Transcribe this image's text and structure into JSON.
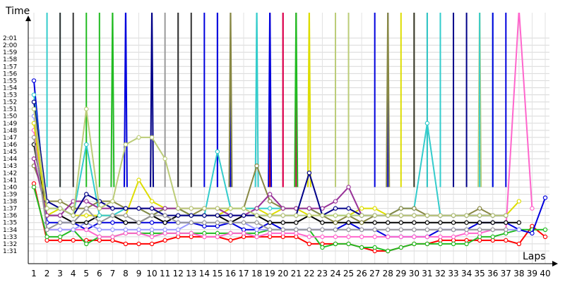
{
  "chart_data": {
    "type": "line",
    "ylabel": "Time",
    "xlabel": "Laps",
    "x": [
      1,
      2,
      3,
      4,
      5,
      6,
      7,
      8,
      9,
      10,
      11,
      12,
      13,
      14,
      15,
      16,
      17,
      18,
      19,
      20,
      21,
      22,
      23,
      24,
      25,
      26,
      27,
      28,
      29,
      30,
      31,
      32,
      33,
      34,
      35,
      36,
      37,
      38,
      39,
      40
    ],
    "y_ticks": [
      "1:31",
      "1:32",
      "1:33",
      "1:34",
      "1:35",
      "1:36",
      "1:37",
      "1:38",
      "1:39",
      "1:40",
      "1:41",
      "1:42",
      "1:43",
      "1:44",
      "1:45",
      "1:46",
      "1:47",
      "1:48",
      "1:49",
      "1:50",
      "1:51",
      "1:52",
      "1:53",
      "1:54",
      "1:55",
      "1:56",
      "1:57",
      "1:58",
      "1:59",
      "2:00",
      "2:01"
    ],
    "ylim": [
      90.5,
      125
    ],
    "xlim": [
      1,
      40
    ],
    "grid": true,
    "series": [
      {
        "color": "#ff0000",
        "values": [
          100.5,
          92.5,
          92.5,
          92.5,
          92.5,
          92.5,
          92.5,
          92,
          92,
          92,
          92.5,
          93,
          93,
          93,
          93,
          92.5,
          93,
          93,
          93,
          93,
          93,
          92,
          92,
          92,
          92,
          91.5,
          91,
          91,
          91.5,
          92,
          92,
          92.5,
          92.5,
          92.5,
          92.5,
          92.5,
          92.5,
          92,
          94.5,
          93
        ]
      },
      {
        "color": "#22bb22",
        "values": [
          100,
          93,
          93,
          94,
          92,
          93,
          93,
          93.5,
          93.5,
          93.5,
          93.5,
          93.5,
          93.5,
          93.5,
          93.5,
          93.5,
          93.5,
          93.5,
          94,
          94,
          94,
          94,
          91.5,
          92,
          92,
          91.5,
          91.5,
          91,
          91.5,
          92,
          92,
          92,
          92,
          92,
          93,
          93,
          93.5,
          94,
          94,
          94
        ]
      },
      {
        "color": "#0000dd",
        "values": [
          115,
          95,
          95,
          95,
          94,
          95,
          95,
          95,
          95,
          95,
          95,
          95,
          95,
          94.5,
          94.5,
          95,
          94,
          94,
          95,
          94,
          94,
          94,
          94,
          94,
          95,
          94,
          94,
          93,
          93,
          93,
          93,
          94,
          94,
          94,
          95,
          95,
          95,
          94,
          93.5,
          98.5
        ]
      },
      {
        "color": "#ff66cc",
        "values": [
          108,
          94,
          94,
          94,
          94,
          93,
          93,
          93.5,
          93.5,
          93,
          93.5,
          93.5,
          93.5,
          93,
          93,
          93.5,
          93.5,
          93,
          93.5,
          93.5,
          93.5,
          93,
          93,
          93,
          93,
          93,
          93,
          93,
          93,
          93,
          93,
          93,
          93,
          93.5,
          93.5,
          94,
          94,
          125,
          97,
          null
        ]
      },
      {
        "color": "#9999ff",
        "values": [
          110,
          94,
          94,
          94,
          95,
          94,
          94,
          94,
          94,
          94,
          94,
          94,
          95,
          95,
          95,
          95,
          95,
          94,
          94,
          94,
          94,
          94,
          94,
          94,
          94,
          94,
          94,
          94,
          94,
          94,
          94,
          94,
          94,
          94,
          94,
          94,
          94,
          94,
          null,
          null
        ]
      },
      {
        "color": "#000000",
        "values": [
          106,
          96,
          96,
          95,
          95,
          96,
          96,
          95,
          95,
          96,
          95,
          96,
          96,
          96,
          96,
          95,
          96,
          96,
          95,
          95,
          95,
          96,
          95,
          95,
          95,
          95,
          95,
          95,
          95,
          95,
          95,
          95,
          95,
          95,
          95,
          95,
          95,
          95,
          null,
          null
        ]
      },
      {
        "color": "#dddd00",
        "values": [
          109,
          96,
          97,
          96,
          96,
          96,
          96,
          96,
          101,
          98,
          97,
          97,
          96,
          96,
          96,
          97,
          97,
          97,
          96,
          97,
          97,
          96,
          96,
          96,
          96,
          97,
          97,
          96,
          96,
          96,
          96,
          96,
          96,
          96,
          96,
          96,
          96,
          98,
          null,
          null
        ]
      },
      {
        "color": "#33cccc",
        "values": [
          113,
          97,
          97,
          96,
          106,
          96,
          96,
          97,
          97,
          96,
          97,
          97,
          96,
          96,
          105,
          97,
          97,
          97,
          97,
          97,
          97,
          97,
          96,
          96,
          96,
          96,
          96,
          96,
          97,
          97,
          109,
          96,
          96,
          96,
          96,
          96,
          96,
          null,
          null,
          null
        ]
      },
      {
        "color": "#888844",
        "values": [
          103,
          98,
          98,
          97,
          97,
          98,
          98,
          97,
          97,
          96,
          97,
          97,
          96,
          97,
          97,
          97,
          97,
          103,
          98,
          97,
          97,
          97,
          96,
          95,
          96,
          95,
          96,
          96,
          97,
          97,
          96,
          96,
          96,
          96,
          97,
          96,
          96,
          null,
          null,
          null
        ]
      },
      {
        "color": "#993399",
        "values": [
          104,
          96,
          96,
          98,
          98,
          97,
          97,
          97,
          97,
          97,
          97,
          97,
          97,
          97,
          97,
          96,
          96,
          97,
          99,
          97,
          97,
          97,
          97,
          98,
          100,
          96,
          96,
          96,
          96,
          96,
          96,
          96,
          96,
          96,
          96,
          96,
          96,
          null,
          null,
          null
        ]
      },
      {
        "color": "#000088",
        "values": [
          112,
          98,
          97,
          96,
          99,
          98,
          97,
          97,
          97,
          97,
          96,
          96,
          96,
          96,
          96,
          96,
          96,
          96,
          96,
          96,
          96,
          102,
          96,
          97,
          97,
          96,
          96,
          96,
          96,
          96,
          96,
          96,
          96,
          96,
          96,
          96,
          96,
          null,
          null,
          null
        ]
      },
      {
        "color": "#bbcc77",
        "values": [
          111,
          97,
          97,
          96,
          111,
          97,
          98,
          106,
          107,
          107,
          104,
          97,
          97,
          97,
          97,
          97,
          97,
          96,
          96,
          96,
          96,
          96,
          96,
          96,
          96,
          96,
          96,
          96,
          96,
          96,
          96,
          96,
          96,
          96,
          96,
          96,
          96,
          null,
          null,
          null
        ]
      },
      {
        "color": "#999999",
        "values": [
          107,
          94,
          95,
          95,
          97,
          95,
          96,
          96,
          95,
          96,
          96,
          95,
          95,
          95,
          95,
          95,
          95,
          95,
          94,
          94,
          94,
          94,
          94,
          94,
          94,
          94,
          94,
          94,
          94,
          94,
          94,
          94,
          94,
          94,
          94,
          94,
          94,
          null,
          null,
          null
        ]
      }
    ],
    "spikes": [
      {
        "color": "#33cccc",
        "from": 2,
        "peak": 126,
        "to": 3
      },
      {
        "color": "#333333",
        "from": 3,
        "peak": 126,
        "to": 4
      },
      {
        "color": "#22bb22",
        "from": 5,
        "peak": 126,
        "to": 6
      },
      {
        "color": "#22bb22",
        "from": 7,
        "peak": 126,
        "to": 7
      },
      {
        "color": "#0000dd",
        "from": 8,
        "peak": 126,
        "to": 8
      },
      {
        "color": "#000088",
        "from": 10,
        "peak": 126,
        "to": 10
      },
      {
        "color": "#999999",
        "from": 11,
        "peak": 126,
        "to": 12
      },
      {
        "color": "#333333",
        "from": 12,
        "peak": 126,
        "to": 13
      },
      {
        "color": "#0000dd",
        "from": 14,
        "peak": 126,
        "to": 15
      },
      {
        "color": "#0000dd",
        "from": 15,
        "peak": 126,
        "to": 16
      },
      {
        "color": "#888844",
        "from": 16,
        "peak": 126,
        "to": 16
      },
      {
        "color": "#33cccc",
        "from": 18,
        "peak": 126,
        "to": 18
      },
      {
        "color": "#cc0000",
        "from": 19,
        "peak": 126,
        "to": 20
      },
      {
        "color": "#0000dd",
        "from": 19,
        "peak": 126,
        "to": 19
      },
      {
        "color": "#dd0055",
        "from": 20,
        "peak": 126,
        "to": 21
      },
      {
        "color": "#22bb22",
        "from": 21,
        "peak": 126,
        "to": 21
      },
      {
        "color": "#dddd00",
        "from": 22,
        "peak": 126,
        "to": 22
      },
      {
        "color": "#bbcc77",
        "from": 24,
        "peak": 126,
        "to": 25
      },
      {
        "color": "#0000dd",
        "from": 27,
        "peak": 126,
        "to": 28
      },
      {
        "color": "#888844",
        "from": 28,
        "peak": 126,
        "to": 28
      },
      {
        "color": "#dddd00",
        "from": 29,
        "peak": 126,
        "to": 30
      },
      {
        "color": "#333333",
        "from": 30,
        "peak": 126,
        "to": 31
      },
      {
        "color": "#33cccc",
        "from": 31,
        "peak": 126,
        "to": 32
      },
      {
        "color": "#000088",
        "from": 33,
        "peak": 126,
        "to": 34
      },
      {
        "color": "#bbcc77",
        "from": 35,
        "peak": 126,
        "to": 35
      },
      {
        "color": "#33cccc",
        "from": 35,
        "peak": 126,
        "to": 36
      },
      {
        "color": "#0000dd",
        "from": 36,
        "peak": 126,
        "to": 37
      }
    ]
  }
}
